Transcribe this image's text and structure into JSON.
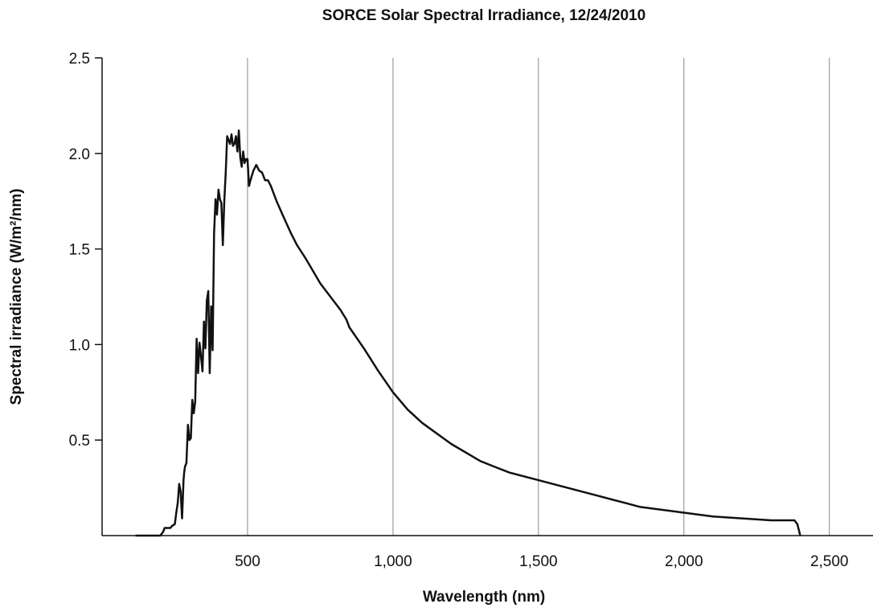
{
  "chart_data": {
    "type": "line",
    "title": "SORCE Solar Spectral Irradiance, 12/24/2010",
    "xlabel": "Wavelength (nm)",
    "ylabel": "Spectral irradiance (W/m²/nm)",
    "xlim": [
      0,
      2650
    ],
    "ylim": [
      0,
      2.5
    ],
    "x_ticks": [
      500,
      1000,
      1500,
      2000,
      2500
    ],
    "x_tick_labels": [
      "500",
      "1,000",
      "1,500",
      "2,000",
      "2,500"
    ],
    "y_ticks": [
      0.5,
      1.0,
      1.5,
      2.0,
      2.5
    ],
    "y_tick_labels": [
      "0.5",
      "1.0",
      "1.5",
      "2.0",
      "2.5"
    ],
    "grid": "vertical",
    "color": "#111111",
    "series": [
      {
        "x": [
          115,
          200,
          210,
          215,
          235,
          240,
          250,
          255,
          260,
          265,
          270,
          275,
          280,
          282,
          285,
          290,
          295,
          300,
          305,
          310,
          315,
          320,
          325,
          330,
          335,
          340,
          345,
          350,
          355,
          360,
          365,
          370,
          375,
          380,
          385,
          390,
          395,
          400,
          405,
          410,
          415,
          420,
          425,
          430,
          435,
          440,
          445,
          450,
          455,
          460,
          465,
          470,
          475,
          480,
          485,
          490,
          495,
          500,
          505,
          510,
          520,
          530,
          540,
          550,
          560,
          570,
          580,
          590,
          600,
          620,
          650,
          670,
          700,
          750,
          800,
          820,
          840,
          850,
          900,
          950,
          1000,
          1050,
          1100,
          1200,
          1300,
          1350,
          1400,
          1500,
          1600,
          1700,
          1800,
          1850,
          1900,
          2000,
          2100,
          2200,
          2300,
          2380,
          2390,
          2400
        ],
        "values": [
          0.0,
          0.0,
          0.02,
          0.04,
          0.04,
          0.05,
          0.06,
          0.12,
          0.17,
          0.27,
          0.23,
          0.09,
          0.29,
          0.33,
          0.36,
          0.38,
          0.58,
          0.5,
          0.51,
          0.71,
          0.64,
          0.7,
          1.03,
          0.85,
          1.01,
          0.94,
          0.86,
          1.12,
          0.98,
          1.23,
          1.28,
          0.85,
          1.2,
          0.97,
          1.58,
          1.76,
          1.68,
          1.81,
          1.76,
          1.74,
          1.52,
          1.75,
          1.9,
          2.09,
          2.07,
          2.05,
          2.1,
          2.04,
          2.05,
          2.09,
          2.01,
          2.12,
          1.98,
          1.93,
          2.01,
          1.95,
          1.97,
          1.97,
          1.83,
          1.86,
          1.91,
          1.94,
          1.91,
          1.9,
          1.86,
          1.86,
          1.83,
          1.79,
          1.75,
          1.68,
          1.58,
          1.52,
          1.45,
          1.32,
          1.22,
          1.18,
          1.13,
          1.09,
          0.98,
          0.86,
          0.75,
          0.66,
          0.59,
          0.48,
          0.39,
          0.36,
          0.33,
          0.29,
          0.25,
          0.21,
          0.17,
          0.15,
          0.14,
          0.12,
          0.1,
          0.09,
          0.08,
          0.08,
          0.06,
          0.0
        ]
      }
    ]
  }
}
